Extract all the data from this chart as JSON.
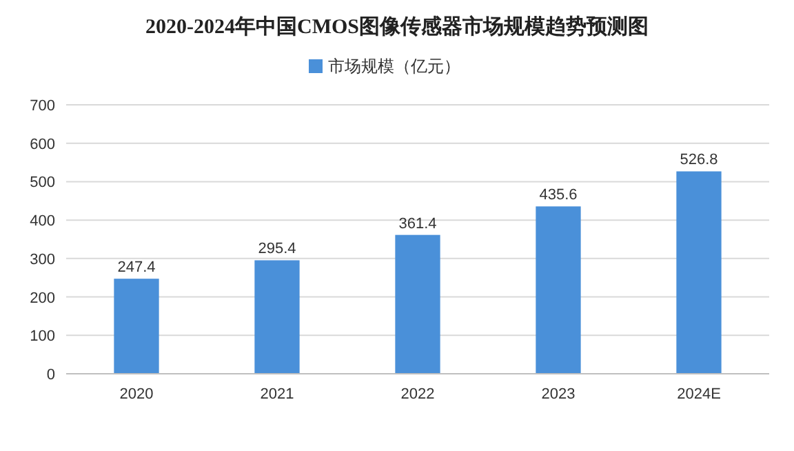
{
  "chart_data": {
    "type": "bar",
    "title": "2020-2024年中国CMOS图像传感器市场规模趋势预测图",
    "categories": [
      "2020",
      "2021",
      "2022",
      "2023",
      "2024E"
    ],
    "series": [
      {
        "name": "市场规模（亿元）",
        "color": "#4a90d9",
        "values": [
          247.4,
          295.4,
          361.4,
          435.6,
          526.8
        ]
      }
    ],
    "ylim": [
      0,
      700
    ],
    "yticks": [
      0,
      100,
      200,
      300,
      400,
      500,
      600,
      700
    ],
    "grid": "y",
    "legend": "top",
    "data_labels": true
  }
}
